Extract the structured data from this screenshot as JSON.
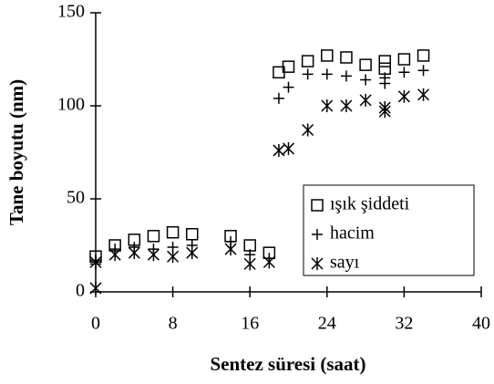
{
  "chart_data": {
    "type": "scatter",
    "xlabel": "Sentez süresi (saat)",
    "ylabel": "Tane boyutu (nm)",
    "xlim": [
      0,
      40
    ],
    "xticks": [
      0,
      8,
      16,
      24,
      32,
      40
    ],
    "ylim": [
      0,
      150
    ],
    "yticks": [
      0,
      50,
      100,
      150
    ],
    "legend": "lower right",
    "series": [
      {
        "name": "ışık şiddeti",
        "marker": "square",
        "color": "#000000",
        "x": [
          0,
          2,
          4,
          6,
          8,
          10,
          14,
          16,
          18,
          19,
          20,
          22,
          24,
          26,
          28,
          30,
          30,
          32,
          34
        ],
        "values": [
          19,
          25,
          28,
          30,
          32,
          31,
          30,
          25,
          21,
          118,
          121,
          124,
          127,
          126,
          122,
          124,
          120,
          125,
          127
        ]
      },
      {
        "name": "hacim",
        "marker": "plus",
        "color": "#000000",
        "x": [
          0,
          0,
          2,
          4,
          6,
          8,
          10,
          14,
          16,
          18,
          19,
          20,
          22,
          24,
          26,
          28,
          30,
          30,
          32,
          34
        ],
        "values": [
          17,
          15,
          23,
          24,
          23,
          24,
          25,
          27,
          20,
          18,
          104,
          110,
          117,
          117,
          116,
          114,
          115,
          112,
          118,
          119
        ]
      },
      {
        "name": "sayı",
        "marker": "asterisk",
        "color": "#000000",
        "x": [
          0,
          0,
          2,
          4,
          6,
          8,
          10,
          14,
          16,
          18,
          19,
          20,
          22,
          24,
          26,
          28,
          30,
          30,
          32,
          34
        ],
        "values": [
          2,
          16,
          20,
          21,
          20,
          19,
          21,
          23,
          15,
          16,
          76,
          77,
          87,
          100,
          100,
          103,
          97,
          99,
          105,
          106
        ]
      }
    ]
  }
}
